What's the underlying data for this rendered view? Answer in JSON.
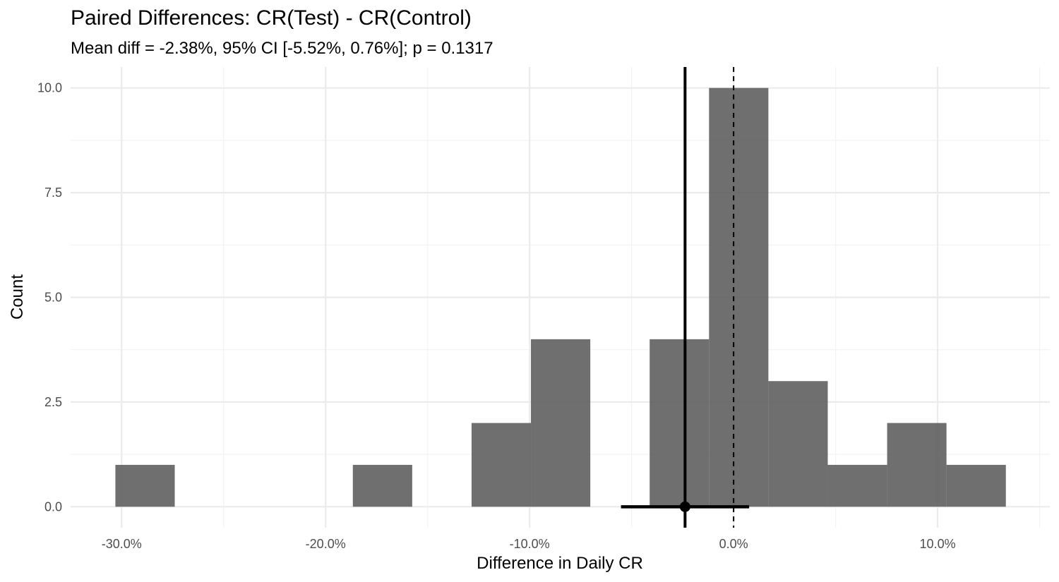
{
  "chart_data": {
    "type": "bar",
    "title": "Paired Differences: CR(Test) - CR(Control)",
    "subtitle": "Mean diff = -2.38%, 95% CI [-5.52%, 0.76%]; p = 0.1317",
    "xlabel": "Difference in Daily CR",
    "ylabel": "Count",
    "xlim": [
      -32.5,
      15.5
    ],
    "ylim": [
      -0.5,
      10.5
    ],
    "x_ticks": [
      {
        "value": -30,
        "label": "-30.0%"
      },
      {
        "value": -20,
        "label": "-20.0%"
      },
      {
        "value": -10,
        "label": "-10.0%"
      },
      {
        "value": 0,
        "label": "0.0%"
      },
      {
        "value": 10,
        "label": "10.0%"
      }
    ],
    "y_ticks": [
      {
        "value": 0,
        "label": "0.0"
      },
      {
        "value": 2.5,
        "label": "2.5"
      },
      {
        "value": 5,
        "label": "5.0"
      },
      {
        "value": 7.5,
        "label": "7.5"
      },
      {
        "value": 10,
        "label": "10.0"
      }
    ],
    "bin_width": 2.91,
    "bins": [
      {
        "center": -28.85,
        "count": 1
      },
      {
        "center": -25.94,
        "count": 0
      },
      {
        "center": -23.03,
        "count": 0
      },
      {
        "center": -20.12,
        "count": 0
      },
      {
        "center": -17.21,
        "count": 1
      },
      {
        "center": -14.3,
        "count": 0
      },
      {
        "center": -11.39,
        "count": 2
      },
      {
        "center": -8.48,
        "count": 4
      },
      {
        "center": -5.57,
        "count": 0
      },
      {
        "center": -2.66,
        "count": 4
      },
      {
        "center": 0.25,
        "count": 10
      },
      {
        "center": 3.16,
        "count": 3
      },
      {
        "center": 6.07,
        "count": 1
      },
      {
        "center": 8.98,
        "count": 2
      },
      {
        "center": 11.89,
        "count": 1
      }
    ],
    "bar_color": "#5f5f5f",
    "mean_diff": -2.38,
    "ci_low": -5.52,
    "ci_high": 0.76,
    "reference_line": 0,
    "grid": true
  }
}
